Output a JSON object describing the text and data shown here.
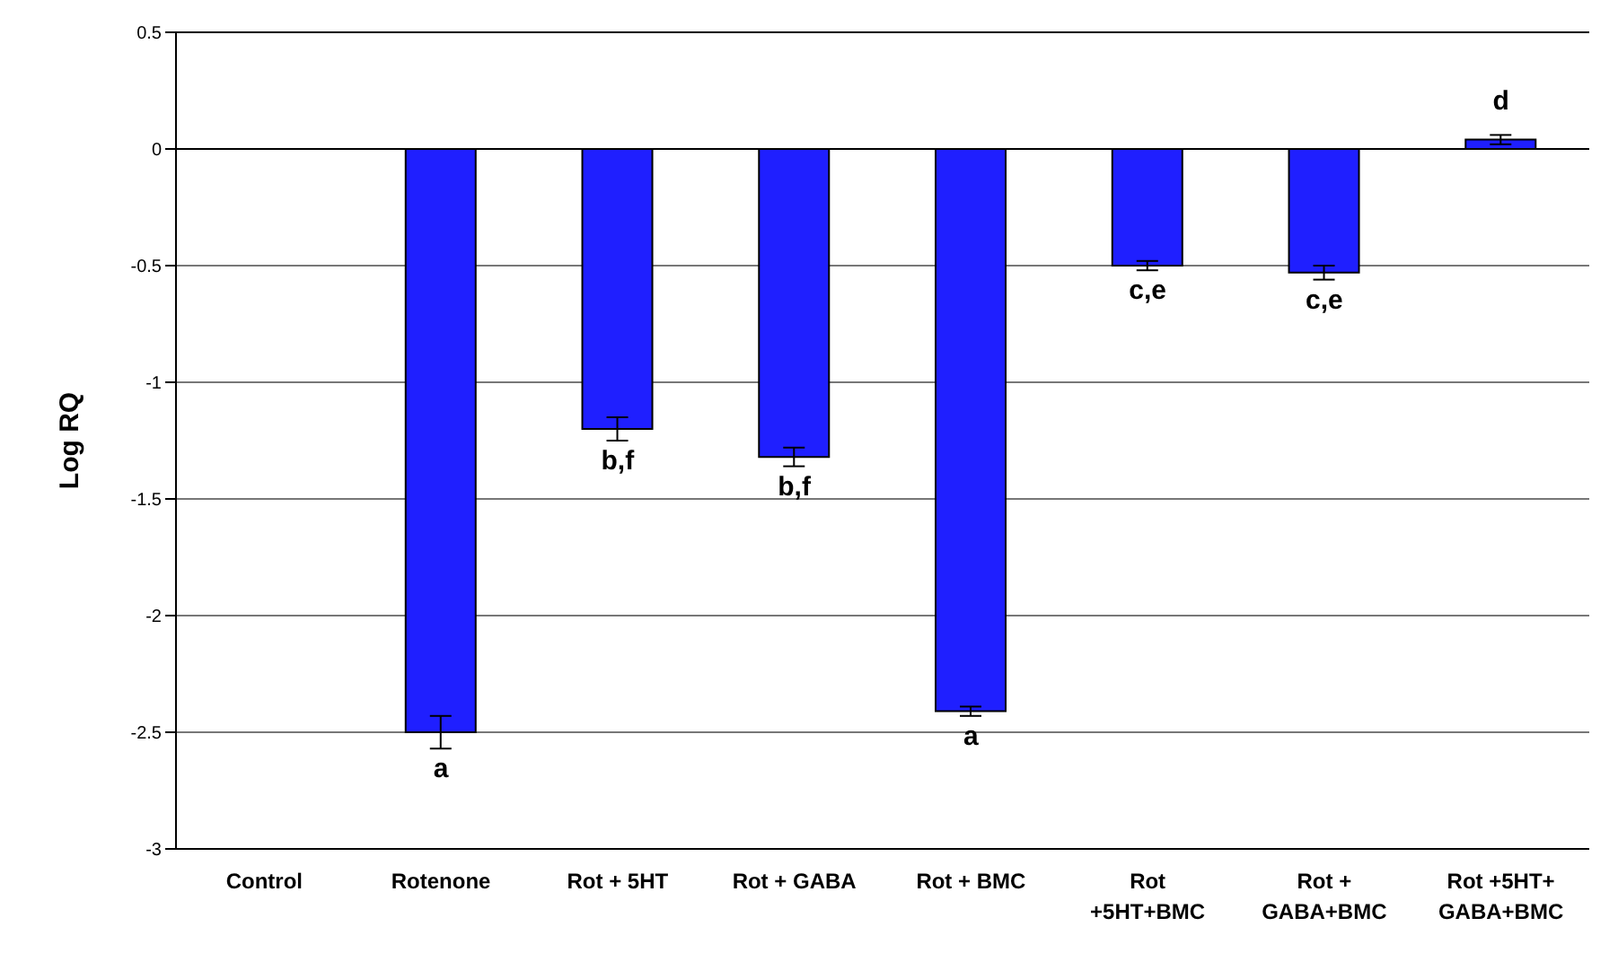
{
  "chart_data": {
    "type": "bar",
    "ylabel": "Log RQ",
    "categories": [
      "Control",
      "Rotenone",
      "Rot + 5HT",
      "Rot + GABA",
      "Rot + BMC",
      "Rot +5HT+BMC",
      "Rot + GABA+BMC",
      "Rot +5HT+ GABA+BMC"
    ],
    "values": [
      0,
      -2.5,
      -1.2,
      -1.32,
      -2.41,
      -0.5,
      -0.53,
      0.04
    ],
    "errors": [
      null,
      0.07,
      0.05,
      0.04,
      0.02,
      0.02,
      0.03,
      0.02
    ],
    "color": "#1f1fff",
    "ylim": [
      -3,
      0.5
    ],
    "yticks": [
      -3,
      -2.5,
      -2,
      -1.5,
      -1,
      -0.5,
      0,
      0.5
    ],
    "grid": "y",
    "annotations": [
      {
        "text": "a",
        "x": "Rotenone",
        "y": -2.5
      },
      {
        "text": "b,f",
        "x": "Rot + 5HT",
        "y": -1.2
      },
      {
        "text": "b,f",
        "x": "Rot + GABA",
        "y": -1.32
      },
      {
        "text": "a",
        "x": "Rot + BMC",
        "y": -2.41
      },
      {
        "text": "c,e",
        "x": "Rot +5HT+BMC",
        "y": -0.5
      },
      {
        "text": "c,e",
        "x": "Rot + GABA+BMC",
        "y": -0.53
      },
      {
        "text": "d",
        "x": "Rot +5HT+ GABA+BMC",
        "y": 0.04
      }
    ]
  }
}
